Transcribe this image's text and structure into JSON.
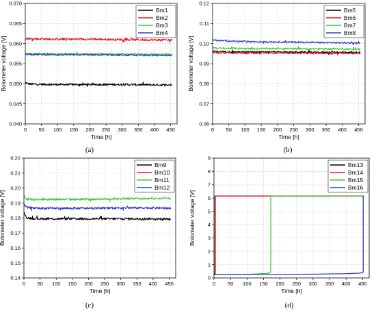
{
  "chart_data": [
    {
      "type": "line",
      "panel_label": "(a)",
      "xlabel": "Time [h]",
      "ylabel": "Bolometer voltage [V]",
      "xlim": [
        0,
        470
      ],
      "ylim": [
        0.04,
        0.07
      ],
      "xticks": [
        0,
        50,
        100,
        150,
        200,
        250,
        300,
        350,
        400,
        450
      ],
      "xtick_labels": [
        "0",
        "50",
        "100",
        "150",
        "200",
        "250",
        "300",
        "350",
        "400",
        "450"
      ],
      "yticks": [
        0.04,
        0.045,
        0.05,
        0.055,
        0.06,
        0.065,
        0.07
      ],
      "ytick_labels": [
        "0.040",
        "0.045",
        "0.050",
        "0.055",
        "0.060",
        "0.065",
        "0.070"
      ],
      "grid": true,
      "legend_position": "top-right",
      "series": [
        {
          "name": "Bm1",
          "color": "#000000",
          "noise": 0.00025,
          "x": [
            0,
            2,
            10,
            20,
            100,
            200,
            300,
            400,
            455
          ],
          "y": [
            0.0503,
            0.0502,
            0.05,
            0.0499,
            0.0498,
            0.0498,
            0.0498,
            0.0497,
            0.0497
          ]
        },
        {
          "name": "Bm2",
          "color": "#e8141b",
          "noise": 0.00025,
          "x": [
            0,
            20,
            100,
            200,
            300,
            400,
            455
          ],
          "y": [
            0.0613,
            0.0612,
            0.0611,
            0.0611,
            0.061,
            0.0609,
            0.0609
          ]
        },
        {
          "name": "Bm3",
          "color": "#3cc83c",
          "noise": 0.0002,
          "x": [
            0,
            20,
            100,
            200,
            300,
            400,
            455
          ],
          "y": [
            0.0576,
            0.0575,
            0.0574,
            0.0574,
            0.0574,
            0.0573,
            0.0573
          ]
        },
        {
          "name": "Bm4",
          "color": "#2b3bc8",
          "noise": 0.0002,
          "x": [
            0,
            20,
            100,
            200,
            300,
            400,
            455
          ],
          "y": [
            0.0574,
            0.0573,
            0.0572,
            0.0572,
            0.0571,
            0.0571,
            0.0571
          ]
        }
      ]
    },
    {
      "type": "line",
      "panel_label": "(b)",
      "xlabel": "Time [h]",
      "ylabel": "Bolometer voltage [V]",
      "xlim": [
        0,
        470
      ],
      "ylim": [
        0.06,
        0.12
      ],
      "xticks": [
        0,
        50,
        100,
        150,
        200,
        250,
        300,
        350,
        400,
        450
      ],
      "xtick_labels": [
        "0",
        "50",
        "100",
        "150",
        "200",
        "250",
        "300",
        "350",
        "400",
        "450"
      ],
      "yticks": [
        0.06,
        0.07,
        0.08,
        0.09,
        0.1,
        0.11,
        0.12
      ],
      "ytick_labels": [
        "0.06",
        "0.07",
        "0.08",
        "0.09",
        "0.10",
        "0.11",
        "0.12"
      ],
      "grid": true,
      "legend_position": "top-right",
      "series": [
        {
          "name": "Bm5",
          "color": "#000000",
          "noise": 0.0004,
          "x": [
            0,
            20,
            100,
            200,
            300,
            400,
            455
          ],
          "y": [
            0.0962,
            0.096,
            0.0958,
            0.0958,
            0.0957,
            0.0957,
            0.0956
          ]
        },
        {
          "name": "Bm6",
          "color": "#e8141b",
          "noise": 0.0004,
          "x": [
            0,
            20,
            100,
            200,
            300,
            400,
            455
          ],
          "y": [
            0.0955,
            0.0954,
            0.0953,
            0.0953,
            0.0952,
            0.0952,
            0.0951
          ]
        },
        {
          "name": "Bm7",
          "color": "#3cc83c",
          "noise": 0.0004,
          "x": [
            0,
            20,
            100,
            200,
            300,
            400,
            455
          ],
          "y": [
            0.098,
            0.0977,
            0.0975,
            0.0975,
            0.0974,
            0.0973,
            0.0972
          ]
        },
        {
          "name": "Bm8",
          "color": "#2b3bc8",
          "noise": 0.0004,
          "x": [
            0,
            20,
            100,
            200,
            300,
            400,
            455
          ],
          "y": [
            0.102,
            0.1015,
            0.101,
            0.1008,
            0.1006,
            0.1004,
            0.1003
          ]
        }
      ]
    },
    {
      "type": "line",
      "panel_label": "(c)",
      "xlabel": "Time [h]",
      "ylabel": "Bolometer voltage [V]",
      "xlim": [
        0,
        470
      ],
      "ylim": [
        0.14,
        0.22
      ],
      "xticks": [
        0,
        50,
        100,
        150,
        200,
        250,
        300,
        350,
        400,
        450
      ],
      "xtick_labels": [
        "0",
        "50",
        "100",
        "150",
        "200",
        "250",
        "300",
        "350",
        "400",
        "450"
      ],
      "yticks": [
        0.14,
        0.15,
        0.16,
        0.17,
        0.18,
        0.19,
        0.2,
        0.21,
        0.22
      ],
      "ytick_labels": [
        "0.14",
        "0.15",
        "0.16",
        "0.17",
        "0.18",
        "0.19",
        "0.20",
        "0.21",
        "0.22"
      ],
      "grid": true,
      "legend_position": "top-right",
      "series": [
        {
          "name": "Bm9",
          "color": "#000000",
          "noise": 0.0007,
          "x": [
            0,
            3,
            10,
            50,
            100,
            200,
            300,
            400,
            455
          ],
          "y": [
            0.184,
            0.182,
            0.18,
            0.1795,
            0.1795,
            0.1795,
            0.1795,
            0.1795,
            0.1793
          ]
        },
        {
          "name": "Bm10",
          "color": "#e8141b",
          "noise": 0.0,
          "x": [],
          "y": []
        },
        {
          "name": "Bm11",
          "color": "#3cc83c",
          "noise": 0.0007,
          "x": [
            0,
            3,
            10,
            50,
            100,
            200,
            300,
            400,
            455
          ],
          "y": [
            0.195,
            0.193,
            0.1925,
            0.1925,
            0.1925,
            0.1925,
            0.193,
            0.193,
            0.193
          ]
        },
        {
          "name": "Bm12",
          "color": "#2b3bc8",
          "noise": 0.0007,
          "x": [
            0,
            3,
            10,
            50,
            100,
            200,
            300,
            400,
            455
          ],
          "y": [
            0.19,
            0.188,
            0.187,
            0.1865,
            0.1865,
            0.1865,
            0.1868,
            0.1868,
            0.1865
          ]
        }
      ]
    },
    {
      "type": "line",
      "panel_label": "(d)",
      "xlabel": "Time [h]",
      "ylabel": "Bolometer voltage [V]",
      "xlim": [
        0,
        470
      ],
      "ylim": [
        0,
        9
      ],
      "xticks": [
        0,
        50,
        100,
        150,
        200,
        250,
        300,
        350,
        400,
        450
      ],
      "xtick_labels": [
        "0",
        "50",
        "100",
        "150",
        "200",
        "250",
        "300",
        "350",
        "400",
        "450"
      ],
      "yticks": [
        0,
        1,
        2,
        3,
        4,
        5,
        6,
        7,
        8,
        9
      ],
      "ytick_labels": [
        "0",
        "1",
        "2",
        "3",
        "4",
        "5",
        "6",
        "7",
        "8",
        "9"
      ],
      "grid": true,
      "legend_position": "top-right",
      "series": [
        {
          "name": "Bm13",
          "color": "#000000",
          "noise": 0.0,
          "x": [
            0,
            3,
            3,
            455
          ],
          "y": [
            0.3,
            0.3,
            6.15,
            6.15
          ]
        },
        {
          "name": "Bm14",
          "color": "#e8141b",
          "noise": 0.0,
          "x": [
            0,
            4,
            4,
            455
          ],
          "y": [
            0.3,
            0.3,
            6.15,
            6.15
          ]
        },
        {
          "name": "Bm15",
          "color": "#3cc83c",
          "noise": 0.0,
          "x": [
            0,
            100,
            165,
            172,
            172,
            455
          ],
          "y": [
            0.25,
            0.27,
            0.35,
            0.45,
            6.15,
            6.15
          ]
        },
        {
          "name": "Bm16",
          "color": "#2b3bc8",
          "noise": 0.0,
          "x": [
            0,
            100,
            200,
            300,
            400,
            440,
            450,
            452,
            452
          ],
          "y": [
            0.25,
            0.26,
            0.27,
            0.28,
            0.32,
            0.36,
            0.4,
            0.45,
            6.15
          ]
        }
      ]
    }
  ]
}
